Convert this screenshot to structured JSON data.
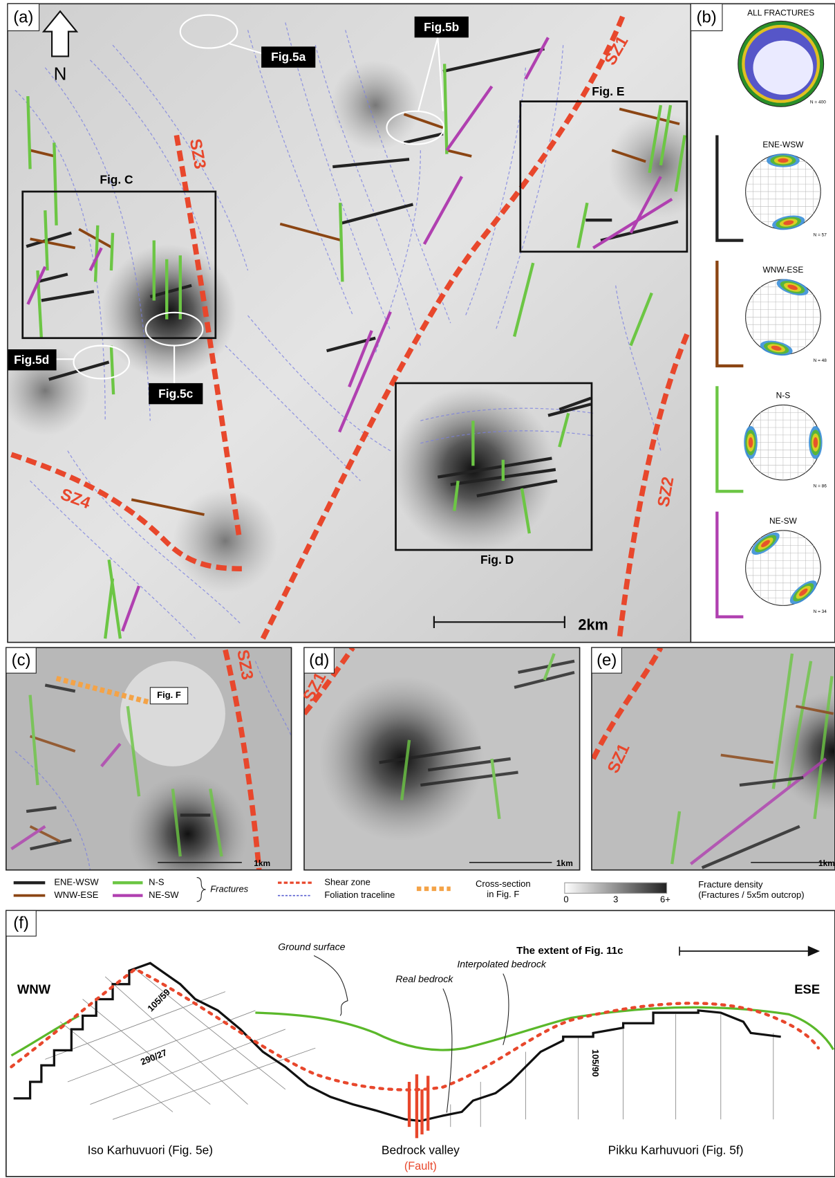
{
  "panel_a": {
    "label": "(a)",
    "north": "N",
    "callouts": [
      "Fig.5a",
      "Fig.5b",
      "Fig.5c",
      "Fig.5d"
    ],
    "boxes": [
      "Fig. C",
      "Fig. E",
      "Fig. D"
    ],
    "shear_zones": [
      "SZ1",
      "SZ2",
      "SZ3",
      "SZ4"
    ],
    "scale": "2km"
  },
  "panel_b": {
    "label": "(b)",
    "all_title": "ALL FRACTURES",
    "all_count": "N = 400",
    "nets": [
      {
        "title": "ENE-WSW",
        "count": "N = 57"
      },
      {
        "title": "WNW-ESE",
        "count": "N = 48"
      },
      {
        "title": "N-S",
        "count": "N = 86"
      },
      {
        "title": "NE-SW",
        "count": "N = 34"
      }
    ]
  },
  "panel_c": {
    "label": "(c)",
    "shear_zone": "SZ3",
    "section": "Fig. F",
    "scale": "1km"
  },
  "panel_d": {
    "label": "(d)",
    "shear_zone": "SZ1",
    "scale": "1km"
  },
  "panel_e": {
    "label": "(e)",
    "shear_zone": "SZ1",
    "scale": "1km"
  },
  "legend": {
    "fractures": [
      "ENE-WSW",
      "WNW-ESE",
      "N-S",
      "NE-SW"
    ],
    "fractures_title": "Fractures",
    "shear_zone": "Shear zone",
    "foliation": "Foliation traceline",
    "section": [
      "Cross-section",
      "in Fig. F"
    ],
    "density_ticks": [
      "0",
      "3",
      "6+"
    ],
    "density_title": [
      "Fracture density",
      "(Fractures / 5x5m outcrop)"
    ]
  },
  "panel_f": {
    "label": "(f)",
    "extent": "The extent of Fig. 11c",
    "left": "WNW",
    "right": "ESE",
    "ground": "Ground surface",
    "interpolated": "Interpolated bedrock",
    "real": "Real bedrock",
    "orientations": [
      "105/59",
      "290/27",
      "105/90"
    ],
    "places": [
      "Iso Karhuvuori (Fig. 5e)",
      "Bedrock valley",
      "Pikku Karhuvuori (Fig. 5f)"
    ],
    "fault": "(Fault)"
  }
}
